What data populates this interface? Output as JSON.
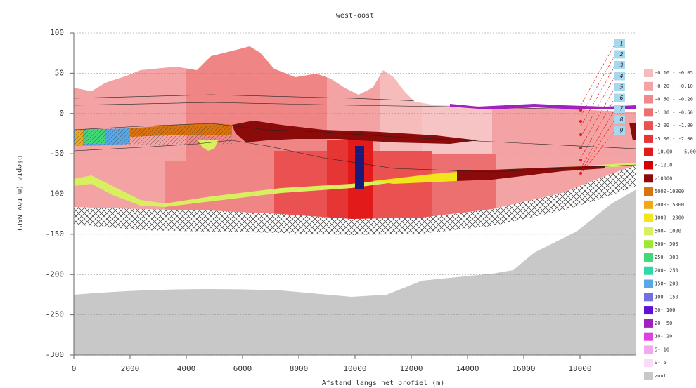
{
  "chart_data": {
    "type": "section",
    "title": "west-oost",
    "xlabel": "Afstand langs het profiel (m)",
    "ylabel": "Diepte (m tov NAP)",
    "xlim": [
      0,
      20000
    ],
    "ylim": [
      -300,
      100
    ],
    "xticks": [
      0,
      2000,
      4000,
      6000,
      8000,
      10000,
      12000,
      14000,
      16000,
      18000
    ],
    "yticks": [
      100,
      50,
      0,
      -50,
      -100,
      -150,
      -200,
      -250,
      -300
    ],
    "grid": true,
    "legend": [
      {
        "name": "-0.10 - -0.05",
        "color": "#f6bcbc"
      },
      {
        "name": "-0.20 - -0.10",
        "color": "#f3a3a3"
      },
      {
        "name": "-0.50 - -0.20",
        "color": "#f08a8a"
      },
      {
        "name": "-1.00 - -0.50",
        "color": "#ed7070"
      },
      {
        "name": "-2.00 - -1.00",
        "color": "#ea5252"
      },
      {
        "name": "-5.00 - -2.00",
        "color": "#e63535"
      },
      {
        "name": "-10.00 - -5.00",
        "color": "#e21a1a"
      },
      {
        "name": "<-10.0",
        "color": "#d60000"
      },
      {
        "name": ">10000",
        "color": "#8b0a0a"
      },
      {
        "name": "5000-10000",
        "color": "#d8730f"
      },
      {
        "name": "2000- 5000",
        "color": "#f0a818"
      },
      {
        "name": "1000- 2000",
        "color": "#f4e41a"
      },
      {
        "name": "500- 1000",
        "color": "#d8f060"
      },
      {
        "name": "300- 500",
        "color": "#9ee830"
      },
      {
        "name": "250- 300",
        "color": "#40d878"
      },
      {
        "name": "200- 250",
        "color": "#30d8a8"
      },
      {
        "name": "150- 200",
        "color": "#58a8e8"
      },
      {
        "name": "100- 150",
        "color": "#7070e0"
      },
      {
        "name": "50- 100",
        "color": "#6010d8"
      },
      {
        "name": "20- 50",
        "color": "#a020c0"
      },
      {
        "name": "10- 20",
        "color": "#e040e0"
      },
      {
        "name": "5- 10",
        "color": "#f4a8f0"
      },
      {
        "name": "0- 5",
        "color": "#fadcf4"
      },
      {
        "name": "zout",
        "color": "#c8c8c8"
      }
    ],
    "well_labels": [
      "1",
      "2",
      "3",
      "4",
      "5",
      "6",
      "7",
      "8",
      "9"
    ]
  }
}
